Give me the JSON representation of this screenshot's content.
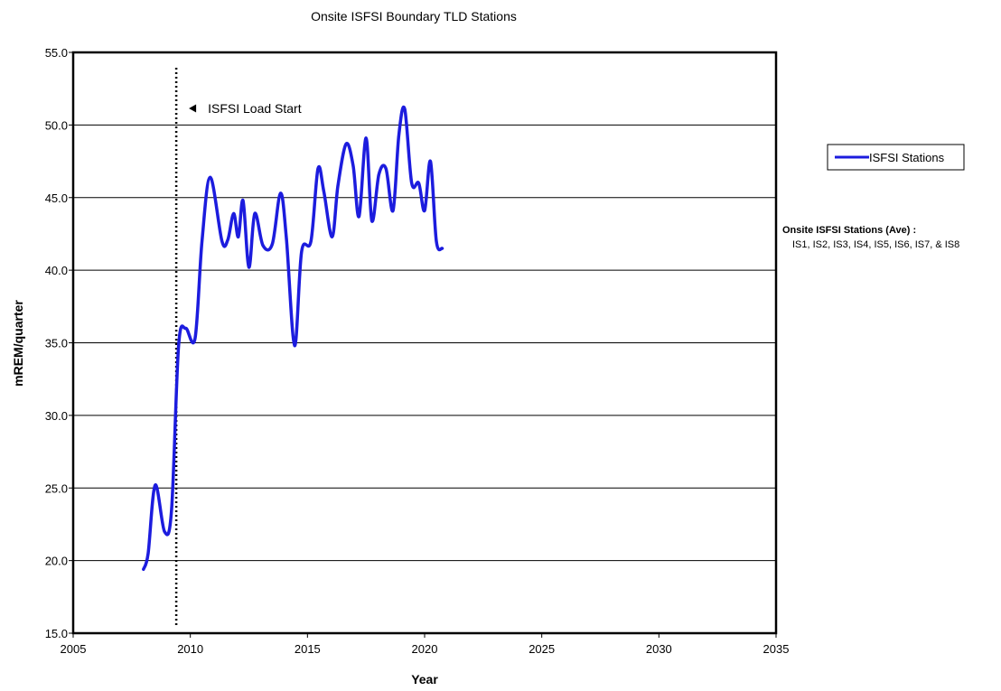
{
  "chart_data": {
    "type": "line",
    "title": "Onsite ISFSI Boundary TLD Stations",
    "xlabel": "Year",
    "ylabel": "mREM/quarter",
    "xlim": [
      2005,
      2035
    ],
    "ylim": [
      15.0,
      55.0
    ],
    "x_ticks": [
      "2005",
      "2010",
      "2015",
      "2020",
      "2025",
      "2030",
      "2035"
    ],
    "y_ticks": [
      "15.0",
      "20.0",
      "25.0",
      "30.0",
      "35.0",
      "40.0",
      "45.0",
      "50.0",
      "55.0"
    ],
    "grid": "horizontal",
    "legend": "right",
    "series": [
      {
        "name": "ISFSI Stations",
        "color": "#1c1cde",
        "x": [
          2008.0,
          2008.2,
          2008.5,
          2008.9,
          2009.2,
          2009.5,
          2009.8,
          2010.2,
          2010.5,
          2010.85,
          2011.35,
          2011.6,
          2011.85,
          2012.05,
          2012.25,
          2012.5,
          2012.75,
          2013.1,
          2013.5,
          2013.85,
          2014.1,
          2014.45,
          2014.75,
          2015.15,
          2015.45,
          2015.7,
          2016.05,
          2016.3,
          2016.65,
          2016.95,
          2017.2,
          2017.5,
          2017.75,
          2018.05,
          2018.35,
          2018.65,
          2018.9,
          2019.15,
          2019.45,
          2019.75,
          2020.0,
          2020.25,
          2020.5,
          2020.75
        ],
        "values": [
          19.4,
          20.5,
          25.2,
          22.0,
          23.5,
          34.8,
          36.0,
          35.3,
          42.0,
          46.4,
          42.0,
          42.1,
          43.9,
          42.3,
          44.8,
          40.2,
          43.9,
          41.7,
          41.8,
          45.3,
          42.2,
          34.8,
          41.3,
          42.0,
          47.0,
          45.4,
          42.3,
          45.8,
          48.7,
          47.2,
          43.7,
          49.1,
          43.4,
          46.6,
          47.0,
          44.1,
          49.3,
          51.1,
          46.0,
          46.0,
          44.1,
          47.5,
          42.0,
          41.5
        ]
      }
    ],
    "annotations": [
      {
        "text": "ISFSI Load Start",
        "x": 2009.4
      }
    ],
    "note": {
      "title": "Onsite ISFSI Stations (Ave) :",
      "body": "IS1, IS2, IS3, IS4, IS5, IS6, IS7, & IS8"
    }
  }
}
